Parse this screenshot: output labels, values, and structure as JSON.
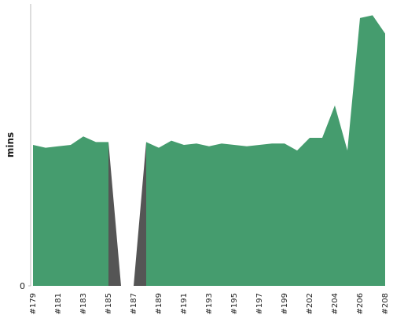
{
  "chart_data": {
    "type": "area",
    "ylabel": "mins",
    "categories": [
      "#179",
      null,
      "#181",
      null,
      "#183",
      null,
      "#185",
      null,
      "#187",
      null,
      "#189",
      null,
      "#191",
      null,
      "#193",
      null,
      "#195",
      null,
      "#197",
      null,
      "#199",
      null,
      "#202",
      null,
      "#204",
      null,
      "#206",
      null,
      "#208"
    ],
    "series": [
      {
        "color": "#555555",
        "values": [
          null,
          null,
          null,
          null,
          null,
          null,
          51,
          0,
          0,
          51,
          null,
          null,
          null,
          null,
          null,
          null,
          null,
          null,
          null,
          null,
          null,
          null,
          null,
          null,
          null,
          null,
          null,
          null,
          null
        ]
      },
      {
        "color": "#459c6e",
        "values": [
          50,
          49,
          49.5,
          50,
          53,
          51,
          51,
          null,
          null,
          51,
          49,
          51.5,
          50,
          50.5,
          49.5,
          50.5,
          50,
          49.5,
          50,
          50.5,
          50.5,
          48,
          52.5,
          52.5,
          64,
          48,
          95,
          96,
          89.5
        ]
      }
    ],
    "ylim": [
      0,
      100
    ],
    "yticks": [
      0
    ]
  }
}
